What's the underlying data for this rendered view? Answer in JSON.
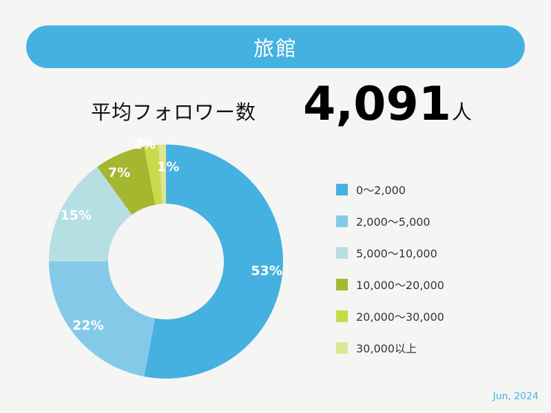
{
  "header": {
    "title": "旅館"
  },
  "summary": {
    "label": "平均フォロワー数",
    "value": "4,091",
    "unit": "人"
  },
  "colors": {
    "accent": "#45b1e0",
    "background": "#f5f5f3",
    "slice_label": "#ffffff"
  },
  "chart_data": {
    "type": "pie",
    "donut": true,
    "categories": [
      "0〜2,000",
      "2,000〜5,000",
      "5,000〜10,000",
      "10,000〜20,000",
      "20,000〜30,000",
      "30,000以上"
    ],
    "values": [
      53,
      22,
      15,
      7,
      2,
      1
    ],
    "labels": [
      "53%",
      "22%",
      "15%",
      "7%",
      "2%",
      "1%"
    ],
    "colors": [
      "#45b1e0",
      "#85c9e9",
      "#b5dfe3",
      "#a4b72e",
      "#c8da4c",
      "#dde597"
    ],
    "legend_position": "right",
    "start": "top, clockwise"
  },
  "footer": {
    "date": "Jun, 2024"
  }
}
